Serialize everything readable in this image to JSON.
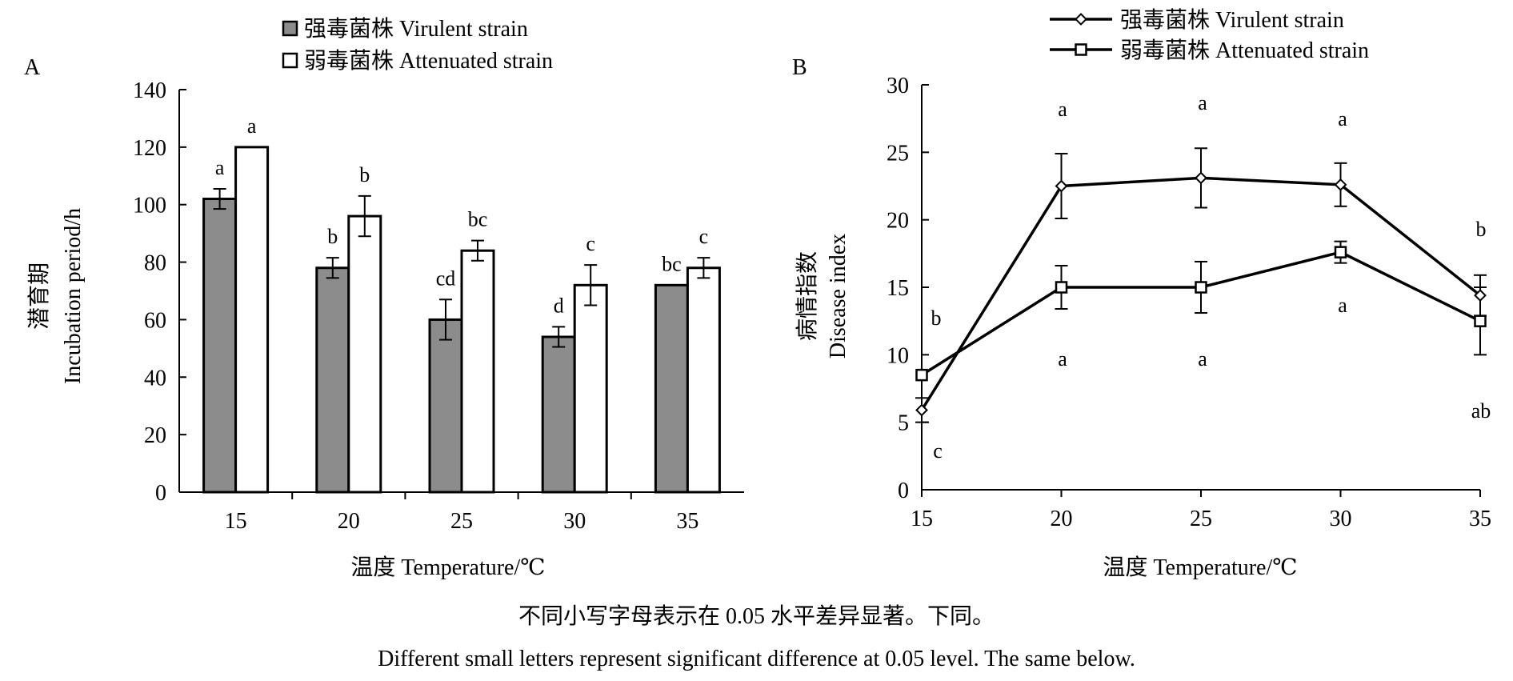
{
  "notes": {
    "cn": "不同小写字母表示在 0.05 水平差异显著。下同。",
    "en": "Different small letters represent significant difference at 0.05 level. The same below."
  },
  "colors": {
    "virulent_fill": "#8c8c8c",
    "attenuated_fill": "#ffffff",
    "stroke": "#000000"
  },
  "chart_data": [
    {
      "panel": "A",
      "type": "bar",
      "xlabel": "温度 Temperature/℃",
      "ylabel": [
        "潜育期",
        "Incubation period/h"
      ],
      "ylim": [
        0,
        140
      ],
      "yticks": [
        0,
        20,
        40,
        60,
        80,
        100,
        120,
        140
      ],
      "grid": false,
      "legend_position": "top-center",
      "categories": [
        "15",
        "20",
        "25",
        "30",
        "35"
      ],
      "series": [
        {
          "name": "强毒菌株 Virulent strain",
          "values": [
            102,
            78,
            60,
            54,
            72
          ],
          "errors": [
            3.5,
            3.5,
            7,
            3.5,
            0
          ],
          "letters": [
            "a",
            "b",
            "cd",
            "d",
            "bc"
          ]
        },
        {
          "name": "弱毒菌株 Attenuated strain",
          "values": [
            120,
            96,
            84,
            72,
            78
          ],
          "errors": [
            0,
            7,
            3.5,
            7,
            3.5
          ],
          "letters": [
            "a",
            "b",
            "bc",
            "c",
            "c"
          ]
        }
      ]
    },
    {
      "panel": "B",
      "type": "line",
      "xlabel": "温度 Temperature/℃",
      "ylabel": [
        "病情指数",
        "Disease index"
      ],
      "ylim": [
        0,
        30
      ],
      "yticks": [
        0,
        5,
        10,
        15,
        20,
        25,
        30
      ],
      "grid": false,
      "legend_position": "top-right",
      "x": [
        15,
        20,
        25,
        30,
        35
      ],
      "series": [
        {
          "name": "强毒菌株 Virulent strain",
          "marker": "diamond",
          "values": [
            5.9,
            22.5,
            23.1,
            22.6,
            14.4
          ],
          "errors": [
            0.9,
            2.4,
            2.2,
            1.6,
            1.5
          ],
          "letters": [
            "c",
            "a",
            "a",
            "a",
            "b"
          ]
        },
        {
          "name": "弱毒菌株 Attenuated strain",
          "marker": "square",
          "values": [
            8.5,
            15.0,
            15.0,
            17.6,
            12.5
          ],
          "errors": [
            0,
            1.6,
            1.9,
            0.8,
            2.5
          ],
          "letters": [
            "b",
            "a",
            "a",
            "a",
            "ab"
          ]
        }
      ]
    }
  ]
}
